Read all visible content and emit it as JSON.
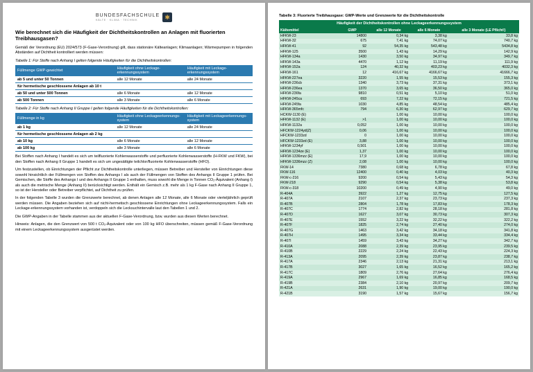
{
  "brand": {
    "name": "BUNDESFACHSCHULE",
    "sub": "KÄLTE · KLIMA · TECHNIK"
  },
  "page1": {
    "h1": "Wie berechnet sich die Häufigkeit der Dichtheitskontrollen an Anlagen mit fluorierten Treibhausgasen?",
    "intro": "Gemäß der Verordnung (EU) 2024/573 (F-Gase-Verordnung) gilt, dass stationäre Kälteanlagen; Klimaanlagen; Wärmepumpen in folgenden Abständen auf Dichtheit kontrolliert werden müssen:",
    "cap1": "Tabelle 1: Für Stoffe nach Anhang I gelten folgende Häufigkeiten für die Dichtheitskontrollen:",
    "t1": {
      "h": [
        "Füllmenge GWP-gewichtet",
        "Häufigkeit ohne Leckage-erkennungssystem",
        "Häufigkeit mit Leckage-erkennungssystem"
      ],
      "rows": [
        [
          "ab 5 und unter 50 Tonnen",
          "alle 12 Monate",
          "alle 24 Monate"
        ],
        [
          "für hermetische geschlossene Anlagen ab 10 t",
          "",
          ""
        ],
        [
          "ab 50 und unter 500 Tonnen",
          "alle 6 Monate",
          "alle 12 Monate"
        ],
        [
          "ab 500 Tonnen",
          "alle 3 Monate",
          "alle 6 Monate"
        ]
      ]
    },
    "cap2": "Tabelle 2: Für Stoffe nach Anhang II Gruppe I gelten folgende Häufigkeiten für die Dichtheitskontrollen:",
    "t2": {
      "h": [
        "Füllmenge in kg",
        "Häufigkeit ohne Leckageerkennungs-system",
        "Häufigkeit mit Leckageerkennungs-system"
      ],
      "rows": [
        [
          "ab 1 kg",
          "alle 12 Monate",
          "alle 24 Monate"
        ],
        [
          "für hermetische geschlossene Anlagen ab 2 kg",
          "",
          ""
        ],
        [
          "ab 10 kg",
          "alle 6 Monate",
          "alle 12 Monate"
        ],
        [
          "ab 100 kg",
          "alle 3 Monate",
          "alle 6 Monate"
        ]
      ]
    },
    "p1": "Bei Stoffen nach Anhang I handelt es sich um teilfluorierte Kohlenwasserstoffe und perfluorierte Kohlenwasserstoffe (H-FKW und FKW), bei den Stoffen nach Anhang II Gruppe 1 handelt es sich um ungesättigte teilchlor/fluorierte Kohlenwasserstoffe (HFO).",
    "p2": "Um festzustellen, ob Einrichtungen der Pflicht zur Dichtheitskontrolle unterliegen, müssen Betreiber und Hersteller von Einrichtungen diese sowohl hinsichtlich der Füllmengen von Stoffen des Anhangs I als auch der Füllmengen von Stoffen des Anhangs II Gruppe 1 prüfen. Bei Gemischen, die Stoffe des Anhangs I und des Anhangs II Gruppe 1 enthalten, muss sowohl die Menge in Tonnen CO₂-Äquivalent (Anhang I) als auch die metrische Menge (Anhang II) berücksichtigt werden. Enthält ein Gemisch z.B. mehr als 1 kg F-Gase nach Anhang II Gruppe 1, so ist der Hersteller oder Betreiber verpflichtet, auf Dichtheit zu prüfen.",
    "p3": "In der folgenden Tabelle 3 wurden die Grenzwerte berechnet, ab denen Anlagen alle 12 Monate, alle 6 Monate oder vierteljährlich geprüft werden müssen. Die Angaben beziehen sich auf nicht-hermetisch geschlossene Einrichtungen ohne Leckageerkennungssystem. Falls ein Leckage-erkennungssystem vorhanden ist, verdoppeln sich die Lecksuchintervalle laut den Tabellen 1 und 2.",
    "p4": "Die GWP-Angaben in der Tabelle stammen aus der aktuellen F-Gase-Verordnung, bzw. wurden aus diesen Werten berechnet.",
    "p5": "Hinweis: Anlagen, die den Grenzwert von 500 t CO₂-Äquivalent oder von 100 kg HFO überschreiten, müssen gemäß F-Gase-Verordnung mit einem Leckageerkennungssystem ausgerüstet werden."
  },
  "t3": {
    "caption": "Tabelle 3: Fluorierte Treibhausgase: GWP-Werte und Grenzwerte für die Dichtheitskontrolle",
    "title": "Häufigkeit der Dichtheitskontrollen ohne Leckageerkennungssystem",
    "cols": [
      "Kältemittel",
      "GWP",
      "alle 12 Monate",
      "alle 6 Monate",
      "alle 3 Monate (LE Pflicht!)"
    ],
    "rows": [
      [
        "HFKW-23",
        "14800",
        "0,34 kg",
        "3,38 kg",
        "33,8 kg"
      ],
      [
        "HFKW-32",
        "675",
        "7,41 kg",
        "74,07 kg",
        "740,7 kg"
      ],
      [
        "HFKW-41",
        "92",
        "54,35 kg",
        "543,48 kg",
        "5434,8 kg"
      ],
      [
        "HFKW-125",
        "3500",
        "1,43 kg",
        "14,29 kg",
        "142,9 kg"
      ],
      [
        "HFKW-134a",
        "1430",
        "3,50 kg",
        "34,97 kg",
        "349,7 kg"
      ],
      [
        "HFKW-143a",
        "4470",
        "1,12 kg",
        "11,19 kg",
        "111,9 kg"
      ],
      [
        "HFKW-152a",
        "124",
        "40,32 kg",
        "403,23 kg",
        "4032,3 kg"
      ],
      [
        "HFKW-161",
        "12",
        "416,67 kg",
        "4166,67 kg",
        "41666,7 kg"
      ],
      [
        "HFKW-227ea",
        "3220",
        "1,55 kg",
        "15,53 kg",
        "155,3 kg"
      ],
      [
        "HFKW-236cb",
        "1340",
        "3,73 kg",
        "37,31 kg",
        "373,1 kg"
      ],
      [
        "HFKW-236ea",
        "1370",
        "3,65 kg",
        "36,50 kg",
        "365,0 kg"
      ],
      [
        "HFKW-236fa",
        "9810",
        "0,51 kg",
        "5,10 kg",
        "51,0 kg"
      ],
      [
        "HFKW-245ca",
        "693",
        "7,22 kg",
        "72,15 kg",
        "721,5 kg"
      ],
      [
        "HFKW-245fa",
        "1030",
        "4,85 kg",
        "48,54 kg",
        "485,4 kg"
      ],
      [
        "HFKW-365mfc",
        "794",
        "6,30 kg",
        "62,97 kg",
        "629,7 kg"
      ],
      [
        "HCKW-1130 (E)",
        "",
        "1,00 kg",
        "10,00 kg",
        "100,0 kg"
      ],
      [
        "HFKW-1132 (E)",
        ">1",
        "1,00 kg",
        "10,00 kg",
        "100,0 kg"
      ],
      [
        "HFKW-1132a",
        "0,052",
        "1,00 kg",
        "10,00 kg",
        "100,0 kg"
      ],
      [
        "HFCKW-1224yd(Z)",
        "0,06",
        "1,00 kg",
        "10,00 kg",
        "100,0 kg"
      ],
      [
        "HFCKW-1233zd",
        "0",
        "1,00 kg",
        "10,00 kg",
        "100,0 kg"
      ],
      [
        "HFCKW-1233zd (E)",
        "3,88",
        "1,00 kg",
        "10,00 kg",
        "100,0 kg"
      ],
      [
        "HFKW-1234yf",
        "0,501",
        "1,00 kg",
        "10,00 kg",
        "100,0 kg"
      ],
      [
        "HFKW-1234ze (E)",
        "1,37",
        "1,00 kg",
        "10,00 kg",
        "100,0 kg"
      ],
      [
        "HFKW-1336mzz (E)",
        "17,9",
        "1,00 kg",
        "10,00 kg",
        "100,0 kg"
      ],
      [
        "HFKW-1336mzz (Z)",
        "2,08",
        "1,00 kg",
        "10,00 kg",
        "100,0 kg"
      ],
      [
        "FKW-14",
        "7380",
        "0,68 kg",
        "6,78 kg",
        "67,8 kg"
      ],
      [
        "FKW-116",
        "12400",
        "0,40 kg",
        "4,03 kg",
        "40,3 kg"
      ],
      [
        "FKW-c-216",
        "9200",
        "0,54 kg",
        "5,43 kg",
        "54,3 kg"
      ],
      [
        "FKW-218",
        "9290",
        "0,54 kg",
        "5,38 kg",
        "53,8 kg"
      ],
      [
        "FKW-c-318",
        "10200",
        "0,49 kg",
        "4,90 kg",
        "49,0 kg"
      ],
      [
        "R-404A",
        "3922",
        "1,27 kg",
        "12,75 kg",
        "127,5 kg"
      ],
      [
        "R-407A",
        "2107",
        "2,37 kg",
        "23,73 kg",
        "237,3 kg"
      ],
      [
        "R-407B",
        "2804",
        "1,78 kg",
        "17,83 kg",
        "178,3 kg"
      ],
      [
        "R-407C",
        "1774",
        "2,82 kg",
        "28,18 kg",
        "281,8 kg"
      ],
      [
        "R-407D",
        "1627",
        "3,07 kg",
        "30,73 kg",
        "307,3 kg"
      ],
      [
        "R-407E",
        "1552",
        "3,22 kg",
        "32,22 kg",
        "322,2 kg"
      ],
      [
        "R-407F",
        "1825",
        "2,74 kg",
        "27,40 kg",
        "274,0 kg"
      ],
      [
        "R-407G",
        "1463",
        "3,42 kg",
        "34,18 kg",
        "341,8 kg"
      ],
      [
        "R-407H",
        "1495",
        "3,34 kg",
        "33,44 kg",
        "334,4 kg"
      ],
      [
        "R-407I",
        "1459",
        "3,43 kg",
        "34,27 kg",
        "342,7 kg"
      ],
      [
        "R-410A",
        "2088",
        "2,39 kg",
        "23,95 kg",
        "239,5 kg"
      ],
      [
        "R-410B",
        "2229",
        "2,24 kg",
        "22,43 kg",
        "224,3 kg"
      ],
      [
        "R-413A",
        "2095",
        "2,39 kg",
        "23,87 kg",
        "238,7 kg"
      ],
      [
        "R-417A",
        "2346",
        "2,13 kg",
        "21,31 kg",
        "213,1 kg"
      ],
      [
        "R-417B",
        "3027",
        "1,65 kg",
        "16,52 kg",
        "165,2 kg"
      ],
      [
        "R-417C",
        "1809",
        "2,76 kg",
        "27,64 kg",
        "276,4 kg"
      ],
      [
        "R-419A",
        "2967",
        "1,69 kg",
        "16,85 kg",
        "168,5 kg"
      ],
      [
        "R-419B",
        "2384",
        "2,10 kg",
        "20,97 kg",
        "209,7 kg"
      ],
      [
        "R-421A",
        "2631",
        "1,90 kg",
        "19,00 kg",
        "190,0 kg"
      ],
      [
        "R-421B",
        "3190",
        "1,57 kg",
        "15,67 kg",
        "156,7 kg"
      ]
    ]
  }
}
